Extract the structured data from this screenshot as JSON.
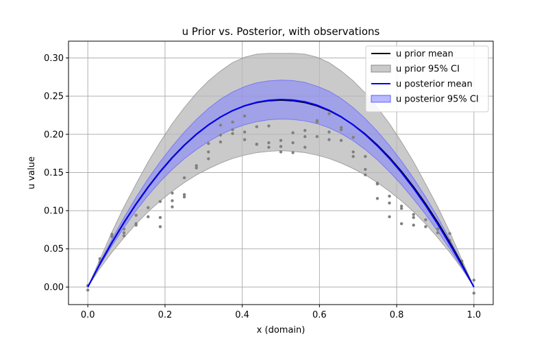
{
  "chart_data": {
    "type": "line",
    "title": "u Prior vs. Posterior, with observations",
    "xlabel": "x (domain)",
    "ylabel": "u value",
    "xlim": [
      -0.05,
      1.05
    ],
    "ylim": [
      -0.023,
      0.322
    ],
    "xticks": [
      0.0,
      0.2,
      0.4,
      0.6,
      0.8,
      1.0
    ],
    "xtick_labels": [
      "0.0",
      "0.2",
      "0.4",
      "0.6",
      "0.8",
      "1.0"
    ],
    "yticks": [
      0.0,
      0.05,
      0.1,
      0.15,
      0.2,
      0.25,
      0.3
    ],
    "ytick_labels": [
      "0.00",
      "0.05",
      "0.10",
      "0.15",
      "0.20",
      "0.25",
      "0.30"
    ],
    "grid": true,
    "legend_position": "top-right",
    "x": [
      0.0,
      0.03125,
      0.0625,
      0.09375,
      0.125,
      0.15625,
      0.1875,
      0.21875,
      0.25,
      0.28125,
      0.3125,
      0.34375,
      0.375,
      0.40625,
      0.4375,
      0.46875,
      0.5,
      0.53125,
      0.5625,
      0.59375,
      0.625,
      0.65625,
      0.6875,
      0.71875,
      0.75,
      0.78125,
      0.8125,
      0.84375,
      0.875,
      0.90625,
      0.9375,
      0.96875,
      1.0
    ],
    "series": [
      {
        "name": "u prior mean",
        "color": "#000000",
        "kind": "line",
        "values": [
          0.0,
          0.0302,
          0.0584,
          0.0847,
          0.1089,
          0.1311,
          0.1514,
          0.1697,
          0.1859,
          0.2002,
          0.2124,
          0.2227,
          0.231,
          0.2373,
          0.2416,
          0.244,
          0.2448,
          0.244,
          0.2416,
          0.2373,
          0.231,
          0.2227,
          0.2124,
          0.2002,
          0.1859,
          0.1697,
          0.1514,
          0.1311,
          0.1089,
          0.0847,
          0.0584,
          0.0302,
          0.0
        ]
      },
      {
        "name": "u prior 95% CI",
        "color": "#b8b8b8",
        "kind": "band",
        "lower": [
          0.0,
          0.0242,
          0.0454,
          0.0647,
          0.0827,
          0.0987,
          0.1127,
          0.1254,
          0.1367,
          0.1467,
          0.155,
          0.1623,
          0.1683,
          0.1727,
          0.176,
          0.1777,
          0.1786,
          0.1777,
          0.176,
          0.1727,
          0.1683,
          0.1623,
          0.155,
          0.1467,
          0.1367,
          0.1254,
          0.1127,
          0.0987,
          0.0827,
          0.0647,
          0.0454,
          0.0242,
          0.0
        ],
        "upper": [
          0.0,
          0.036,
          0.072,
          0.105,
          0.135,
          0.164,
          0.19,
          0.214,
          0.235,
          0.254,
          0.27,
          0.283,
          0.294,
          0.301,
          0.305,
          0.306,
          0.306,
          0.306,
          0.305,
          0.301,
          0.294,
          0.283,
          0.27,
          0.254,
          0.235,
          0.214,
          0.19,
          0.164,
          0.135,
          0.105,
          0.072,
          0.036,
          0.0
        ]
      },
      {
        "name": "u posterior mean",
        "color": "#0000ff",
        "kind": "line",
        "values": [
          0.0,
          0.03,
          0.058,
          0.0842,
          0.1084,
          0.1306,
          0.1509,
          0.1692,
          0.1855,
          0.1999,
          0.2122,
          0.2226,
          0.231,
          0.2375,
          0.242,
          0.2446,
          0.2456,
          0.245,
          0.2426,
          0.2382,
          0.2316,
          0.223,
          0.2122,
          0.1995,
          0.1848,
          0.1683,
          0.1497,
          0.1292,
          0.1067,
          0.0824,
          0.056,
          0.0285,
          0.0
        ]
      },
      {
        "name": "u posterior 95% CI",
        "color": "#8080ff",
        "kind": "band",
        "lower": [
          0.0,
          0.028,
          0.054,
          0.078,
          0.1,
          0.12,
          0.138,
          0.154,
          0.168,
          0.18,
          0.1905,
          0.1995,
          0.207,
          0.2125,
          0.2165,
          0.219,
          0.22,
          0.2195,
          0.2175,
          0.214,
          0.2085,
          0.201,
          0.1915,
          0.18,
          0.1665,
          0.151,
          0.134,
          0.115,
          0.095,
          0.073,
          0.05,
          0.0255,
          0.0
        ],
        "upper": [
          0.0,
          0.0325,
          0.0625,
          0.091,
          0.1175,
          0.142,
          0.164,
          0.1845,
          0.203,
          0.2195,
          0.234,
          0.246,
          0.2555,
          0.2625,
          0.2675,
          0.27,
          0.271,
          0.2705,
          0.268,
          0.263,
          0.2565,
          0.247,
          0.235,
          0.2205,
          0.204,
          0.1855,
          0.165,
          0.1425,
          0.118,
          0.0915,
          0.0625,
          0.032,
          0.0
        ]
      }
    ],
    "observations": {
      "color": "#808080",
      "points": [
        [
          0.0,
          -0.004
        ],
        [
          0.0,
          0.002
        ],
        [
          0.03125,
          0.037
        ],
        [
          0.03125,
          0.033
        ],
        [
          0.0625,
          0.069
        ],
        [
          0.0625,
          0.066
        ],
        [
          0.09375,
          0.067
        ],
        [
          0.09375,
          0.071
        ],
        [
          0.09375,
          0.076
        ],
        [
          0.125,
          0.081
        ],
        [
          0.125,
          0.083
        ],
        [
          0.125,
          0.094
        ],
        [
          0.15625,
          0.092
        ],
        [
          0.15625,
          0.104
        ],
        [
          0.1875,
          0.079
        ],
        [
          0.1875,
          0.091
        ],
        [
          0.1875,
          0.112
        ],
        [
          0.21875,
          0.105
        ],
        [
          0.21875,
          0.113
        ],
        [
          0.21875,
          0.123
        ],
        [
          0.25,
          0.118
        ],
        [
          0.25,
          0.121
        ],
        [
          0.25,
          0.143
        ],
        [
          0.28125,
          0.156
        ],
        [
          0.28125,
          0.159
        ],
        [
          0.3125,
          0.168
        ],
        [
          0.3125,
          0.177
        ],
        [
          0.3125,
          0.188
        ],
        [
          0.34375,
          0.19
        ],
        [
          0.34375,
          0.199
        ],
        [
          0.34375,
          0.212
        ],
        [
          0.375,
          0.201
        ],
        [
          0.375,
          0.206
        ],
        [
          0.375,
          0.216
        ],
        [
          0.40625,
          0.193
        ],
        [
          0.40625,
          0.203
        ],
        [
          0.40625,
          0.224
        ],
        [
          0.4375,
          0.187
        ],
        [
          0.4375,
          0.187
        ],
        [
          0.4375,
          0.21
        ],
        [
          0.46875,
          0.183
        ],
        [
          0.46875,
          0.189
        ],
        [
          0.46875,
          0.211
        ],
        [
          0.5,
          0.177
        ],
        [
          0.5,
          0.184
        ],
        [
          0.5,
          0.192
        ],
        [
          0.53125,
          0.176
        ],
        [
          0.53125,
          0.189
        ],
        [
          0.53125,
          0.202
        ],
        [
          0.5625,
          0.183
        ],
        [
          0.5625,
          0.197
        ],
        [
          0.5625,
          0.205
        ],
        [
          0.59375,
          0.197
        ],
        [
          0.59375,
          0.216
        ],
        [
          0.59375,
          0.218
        ],
        [
          0.625,
          0.193
        ],
        [
          0.625,
          0.203
        ],
        [
          0.625,
          0.227
        ],
        [
          0.65625,
          0.192
        ],
        [
          0.65625,
          0.206
        ],
        [
          0.65625,
          0.209
        ],
        [
          0.6875,
          0.171
        ],
        [
          0.6875,
          0.177
        ],
        [
          0.6875,
          0.196
        ],
        [
          0.71875,
          0.147
        ],
        [
          0.71875,
          0.154
        ],
        [
          0.71875,
          0.171
        ],
        [
          0.75,
          0.116
        ],
        [
          0.75,
          0.135
        ],
        [
          0.75,
          0.136
        ],
        [
          0.78125,
          0.092
        ],
        [
          0.78125,
          0.11
        ],
        [
          0.78125,
          0.119
        ],
        [
          0.8125,
          0.083
        ],
        [
          0.8125,
          0.103
        ],
        [
          0.8125,
          0.106
        ],
        [
          0.84375,
          0.081
        ],
        [
          0.84375,
          0.091
        ],
        [
          0.84375,
          0.095
        ],
        [
          0.875,
          0.079
        ],
        [
          0.875,
          0.088
        ],
        [
          0.90625,
          0.071
        ],
        [
          0.90625,
          0.076
        ],
        [
          0.9375,
          0.061
        ],
        [
          0.9375,
          0.07
        ],
        [
          0.96875,
          0.03
        ],
        [
          0.96875,
          0.034
        ],
        [
          1.0,
          -0.008
        ],
        [
          1.0,
          0.009
        ]
      ]
    }
  }
}
